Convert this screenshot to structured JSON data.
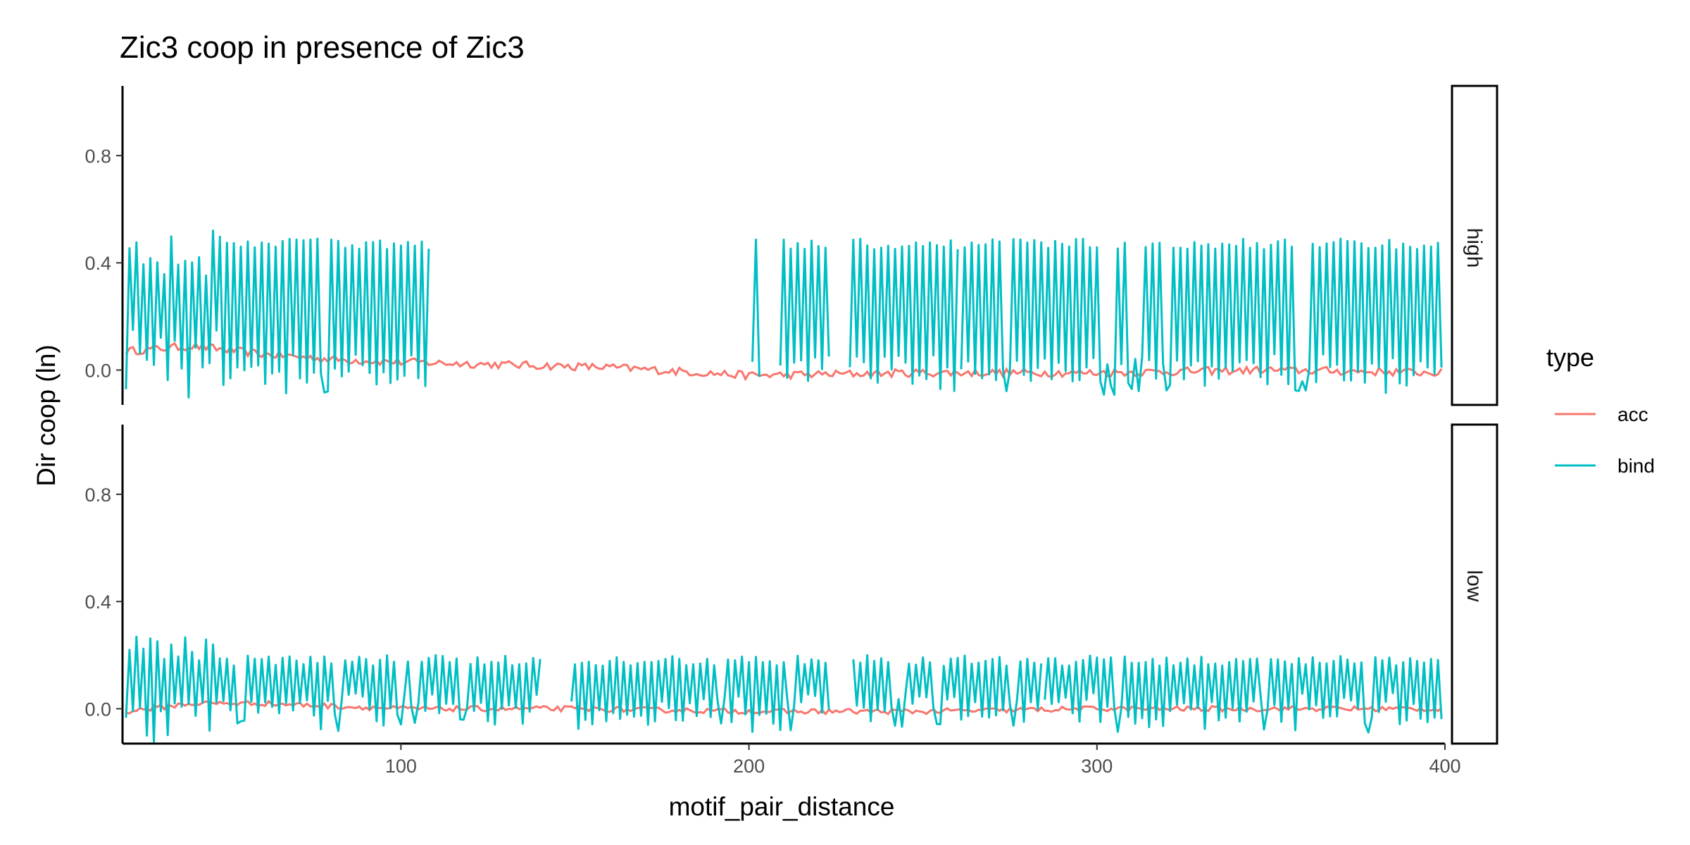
{
  "chart_data": {
    "type": "line",
    "title": "Zic3 coop in presence of Zic3",
    "xlabel": "motif_pair_distance",
    "ylabel": "Dir coop (ln)",
    "xlim": [
      20,
      400
    ],
    "ylim": [
      -0.13,
      1.06
    ],
    "x_ticks": [
      100,
      200,
      300,
      400
    ],
    "y_ticks": [
      0.0,
      0.4,
      0.8
    ],
    "y_tick_labels": [
      "0.0",
      "0.4",
      "0.8"
    ],
    "legend": {
      "title": "type",
      "position": "right",
      "entries": [
        {
          "name": "acc",
          "color": "#F8766D"
        },
        {
          "name": "bind",
          "color": "#00BFC4"
        }
      ]
    },
    "facets": [
      {
        "label": "high",
        "series": [
          {
            "name": "acc",
            "color": "#F8766D",
            "x_range": [
              21,
              399
            ],
            "profile": [
              [
                21,
                0.07
              ],
              [
                40,
                0.09
              ],
              [
                60,
                0.06
              ],
              [
                80,
                0.04
              ],
              [
                100,
                0.03
              ],
              [
                130,
                0.02
              ],
              [
                160,
                0.01
              ],
              [
                200,
                -0.02
              ],
              [
                250,
                -0.01
              ],
              [
                300,
                -0.01
              ],
              [
                350,
                0.0
              ],
              [
                399,
                -0.01
              ]
            ],
            "noise": 0.015
          },
          {
            "name": "bind",
            "color": "#00BFC4",
            "x_range": [
              21,
              399
            ],
            "segments": [
              [
                21,
                48
              ],
              [
                48,
                108
              ],
              [
                201,
                203
              ],
              [
                209,
                223
              ],
              [
                229,
                260
              ],
              [
                261,
                399
              ]
            ],
            "mean": 0.25,
            "peak_max": 0.57,
            "low_min": -0.1,
            "osc_high": 0.49,
            "osc_low": 0.0
          }
        ]
      },
      {
        "label": "low",
        "series": [
          {
            "name": "acc",
            "color": "#F8766D",
            "x_range": [
              21,
              399
            ],
            "profile": [
              [
                21,
                -0.01
              ],
              [
                40,
                0.02
              ],
              [
                60,
                0.02
              ],
              [
                100,
                0.0
              ],
              [
                150,
                0.0
              ],
              [
                200,
                -0.01
              ],
              [
                250,
                -0.01
              ],
              [
                300,
                0.0
              ],
              [
                350,
                0.0
              ],
              [
                399,
                0.0
              ]
            ],
            "noise": 0.01
          },
          {
            "name": "bind",
            "color": "#00BFC4",
            "x_range": [
              21,
              399
            ],
            "segments": [
              [
                21,
                48
              ],
              [
                48,
                140
              ],
              [
                149,
                223
              ],
              [
                230,
                284
              ],
              [
                285,
                399
              ]
            ],
            "mean": 0.08,
            "peak_max": 0.27,
            "low_min": -0.09,
            "osc_high": 0.2,
            "osc_low": 0.0
          }
        ]
      }
    ]
  }
}
